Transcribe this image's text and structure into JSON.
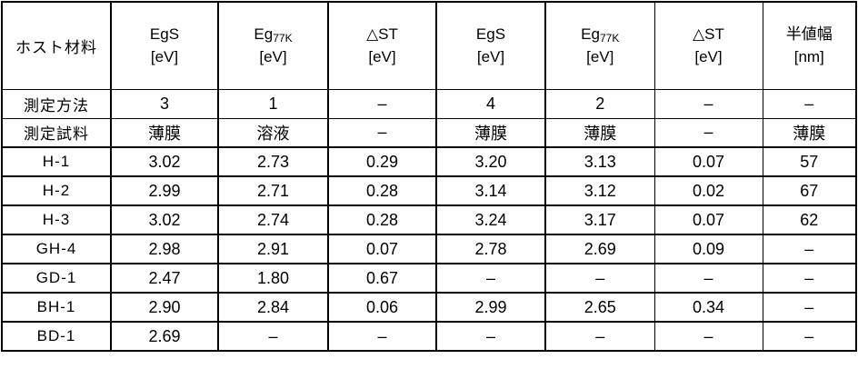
{
  "meta": {
    "background_color": "#ffffff",
    "line_color": "#000000",
    "text_color": "#000000"
  },
  "chart_data": {
    "type": "table",
    "title": "",
    "columns": [
      "ホスト材料",
      "EgS [eV]",
      "Eg77K [eV]",
      "△ST [eV]",
      "EgS [eV]",
      "Eg77K [eV]",
      "△ST [eV]",
      "半値幅 [nm]"
    ],
    "rows": [
      [
        "測定方法",
        "3",
        "1",
        "–",
        "4",
        "2",
        "–",
        "–"
      ],
      [
        "測定試料",
        "薄膜",
        "溶液",
        "–",
        "薄膜",
        "薄膜",
        "–",
        "薄膜"
      ],
      [
        "H-1",
        "3.02",
        "2.73",
        "0.29",
        "3.20",
        "3.13",
        "0.07",
        "57"
      ],
      [
        "H-2",
        "2.99",
        "2.71",
        "0.28",
        "3.14",
        "3.12",
        "0.02",
        "67"
      ],
      [
        "H-3",
        "3.02",
        "2.74",
        "0.28",
        "3.24",
        "3.17",
        "0.07",
        "62"
      ],
      [
        "GH-4",
        "2.98",
        "2.91",
        "0.07",
        "2.78",
        "2.69",
        "0.09",
        "–"
      ],
      [
        "GD-1",
        "2.47",
        "1.80",
        "0.67",
        "–",
        "–",
        "–",
        "–"
      ],
      [
        "BH-1",
        "2.90",
        "2.84",
        "0.06",
        "2.99",
        "2.65",
        "0.34",
        "–"
      ],
      [
        "BD-1",
        "2.69",
        "–",
        "–",
        "–",
        "–",
        "–",
        "–"
      ]
    ],
    "layout": {
      "grid": true,
      "header_row_tall": true
    }
  },
  "table": {
    "header": {
      "col0": "ホスト材料",
      "cols": [
        {
          "base": "EgS",
          "sub": "",
          "unit": "[eV]"
        },
        {
          "base": "Eg",
          "sub": "77K",
          "unit": "[eV]"
        },
        {
          "base": "△ST",
          "sub": "",
          "unit": "[eV]"
        },
        {
          "base": "EgS",
          "sub": "",
          "unit": "[eV]"
        },
        {
          "base": "Eg",
          "sub": "77K",
          "unit": "[eV]"
        },
        {
          "base": "△ST",
          "sub": "",
          "unit": "[eV]"
        },
        {
          "base": "半値幅",
          "sub": "",
          "unit": "[nm]"
        }
      ]
    },
    "info_rows": [
      {
        "label": "測定方法",
        "values": [
          "3",
          "1",
          "–",
          "4",
          "2",
          "–",
          "–"
        ]
      },
      {
        "label": "測定試料",
        "values": [
          "薄膜",
          "溶液",
          "–",
          "薄膜",
          "薄膜",
          "–",
          "薄膜"
        ]
      }
    ],
    "data_rows": [
      {
        "label": "H-1",
        "values": [
          "3.02",
          "2.73",
          "0.29",
          "3.20",
          "3.13",
          "0.07",
          "57"
        ]
      },
      {
        "label": "H-2",
        "values": [
          "2.99",
          "2.71",
          "0.28",
          "3.14",
          "3.12",
          "0.02",
          "67"
        ]
      },
      {
        "label": "H-3",
        "values": [
          "3.02",
          "2.74",
          "0.28",
          "3.24",
          "3.17",
          "0.07",
          "62"
        ]
      },
      {
        "label": "GH-4",
        "values": [
          "2.98",
          "2.91",
          "0.07",
          "2.78",
          "2.69",
          "0.09",
          "–"
        ]
      },
      {
        "label": "GD-1",
        "values": [
          "2.47",
          "1.80",
          "0.67",
          "–",
          "–",
          "–",
          "–"
        ]
      },
      {
        "label": "BH-1",
        "values": [
          "2.90",
          "2.84",
          "0.06",
          "2.99",
          "2.65",
          "0.34",
          "–"
        ]
      },
      {
        "label": "BD-1",
        "values": [
          "2.69",
          "–",
          "–",
          "–",
          "–",
          "–",
          "–"
        ]
      }
    ]
  }
}
